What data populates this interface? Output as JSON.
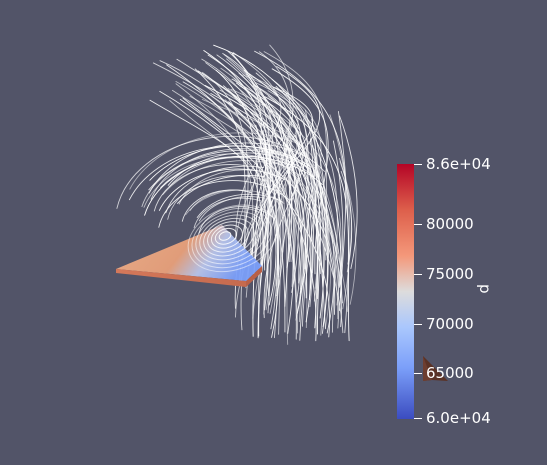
{
  "colorbar": {
    "title": "p",
    "labels": [
      {
        "text": "8.6e+04"
      },
      {
        "text": "80000"
      },
      {
        "text": "75000"
      },
      {
        "text": "70000"
      },
      {
        "text": "65000"
      },
      {
        "text": "6.0e+04"
      }
    ],
    "colors": {
      "max": "#b40426",
      "mid": "#dddcdc",
      "min": "#3b4cc0"
    }
  },
  "scene": {
    "background": "#525468",
    "streamline_color": "#ffffff",
    "surface_color": "#e8a07a",
    "orientation_glyph_color": "#5a3226"
  }
}
